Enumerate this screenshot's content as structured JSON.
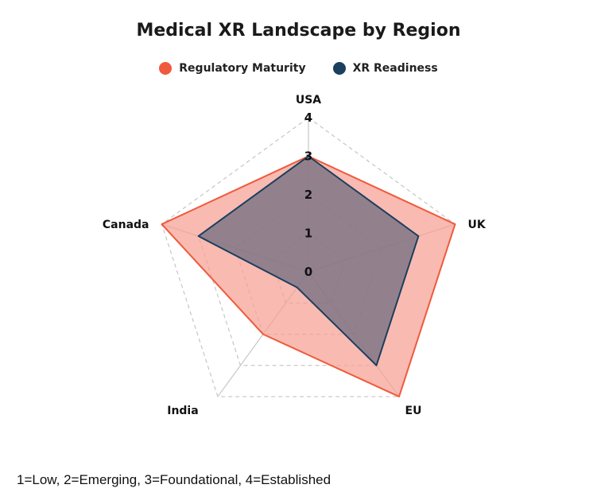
{
  "chart_data": {
    "type": "radar",
    "title": "Medical XR Landscape by Region",
    "categories": [
      "USA",
      "UK",
      "EU",
      "India",
      "Canada"
    ],
    "rlim": [
      0,
      4
    ],
    "ticks": [
      "0",
      "1",
      "2",
      "3",
      "4"
    ],
    "grid": true,
    "legend_position": "top-center",
    "series": [
      {
        "name": "Regulatory Maturity",
        "values": [
          3,
          4,
          4,
          2,
          4
        ],
        "color": "#ef5a3c",
        "fill": "#f5a093"
      },
      {
        "name": "XR Readiness",
        "values": [
          3,
          3,
          3,
          0.5,
          3
        ],
        "color": "#1b3f5e",
        "fill": "#6b6b7e"
      }
    ]
  },
  "footnote": "1=Low, 2=Emerging, 3=Foundational, 4=Established"
}
